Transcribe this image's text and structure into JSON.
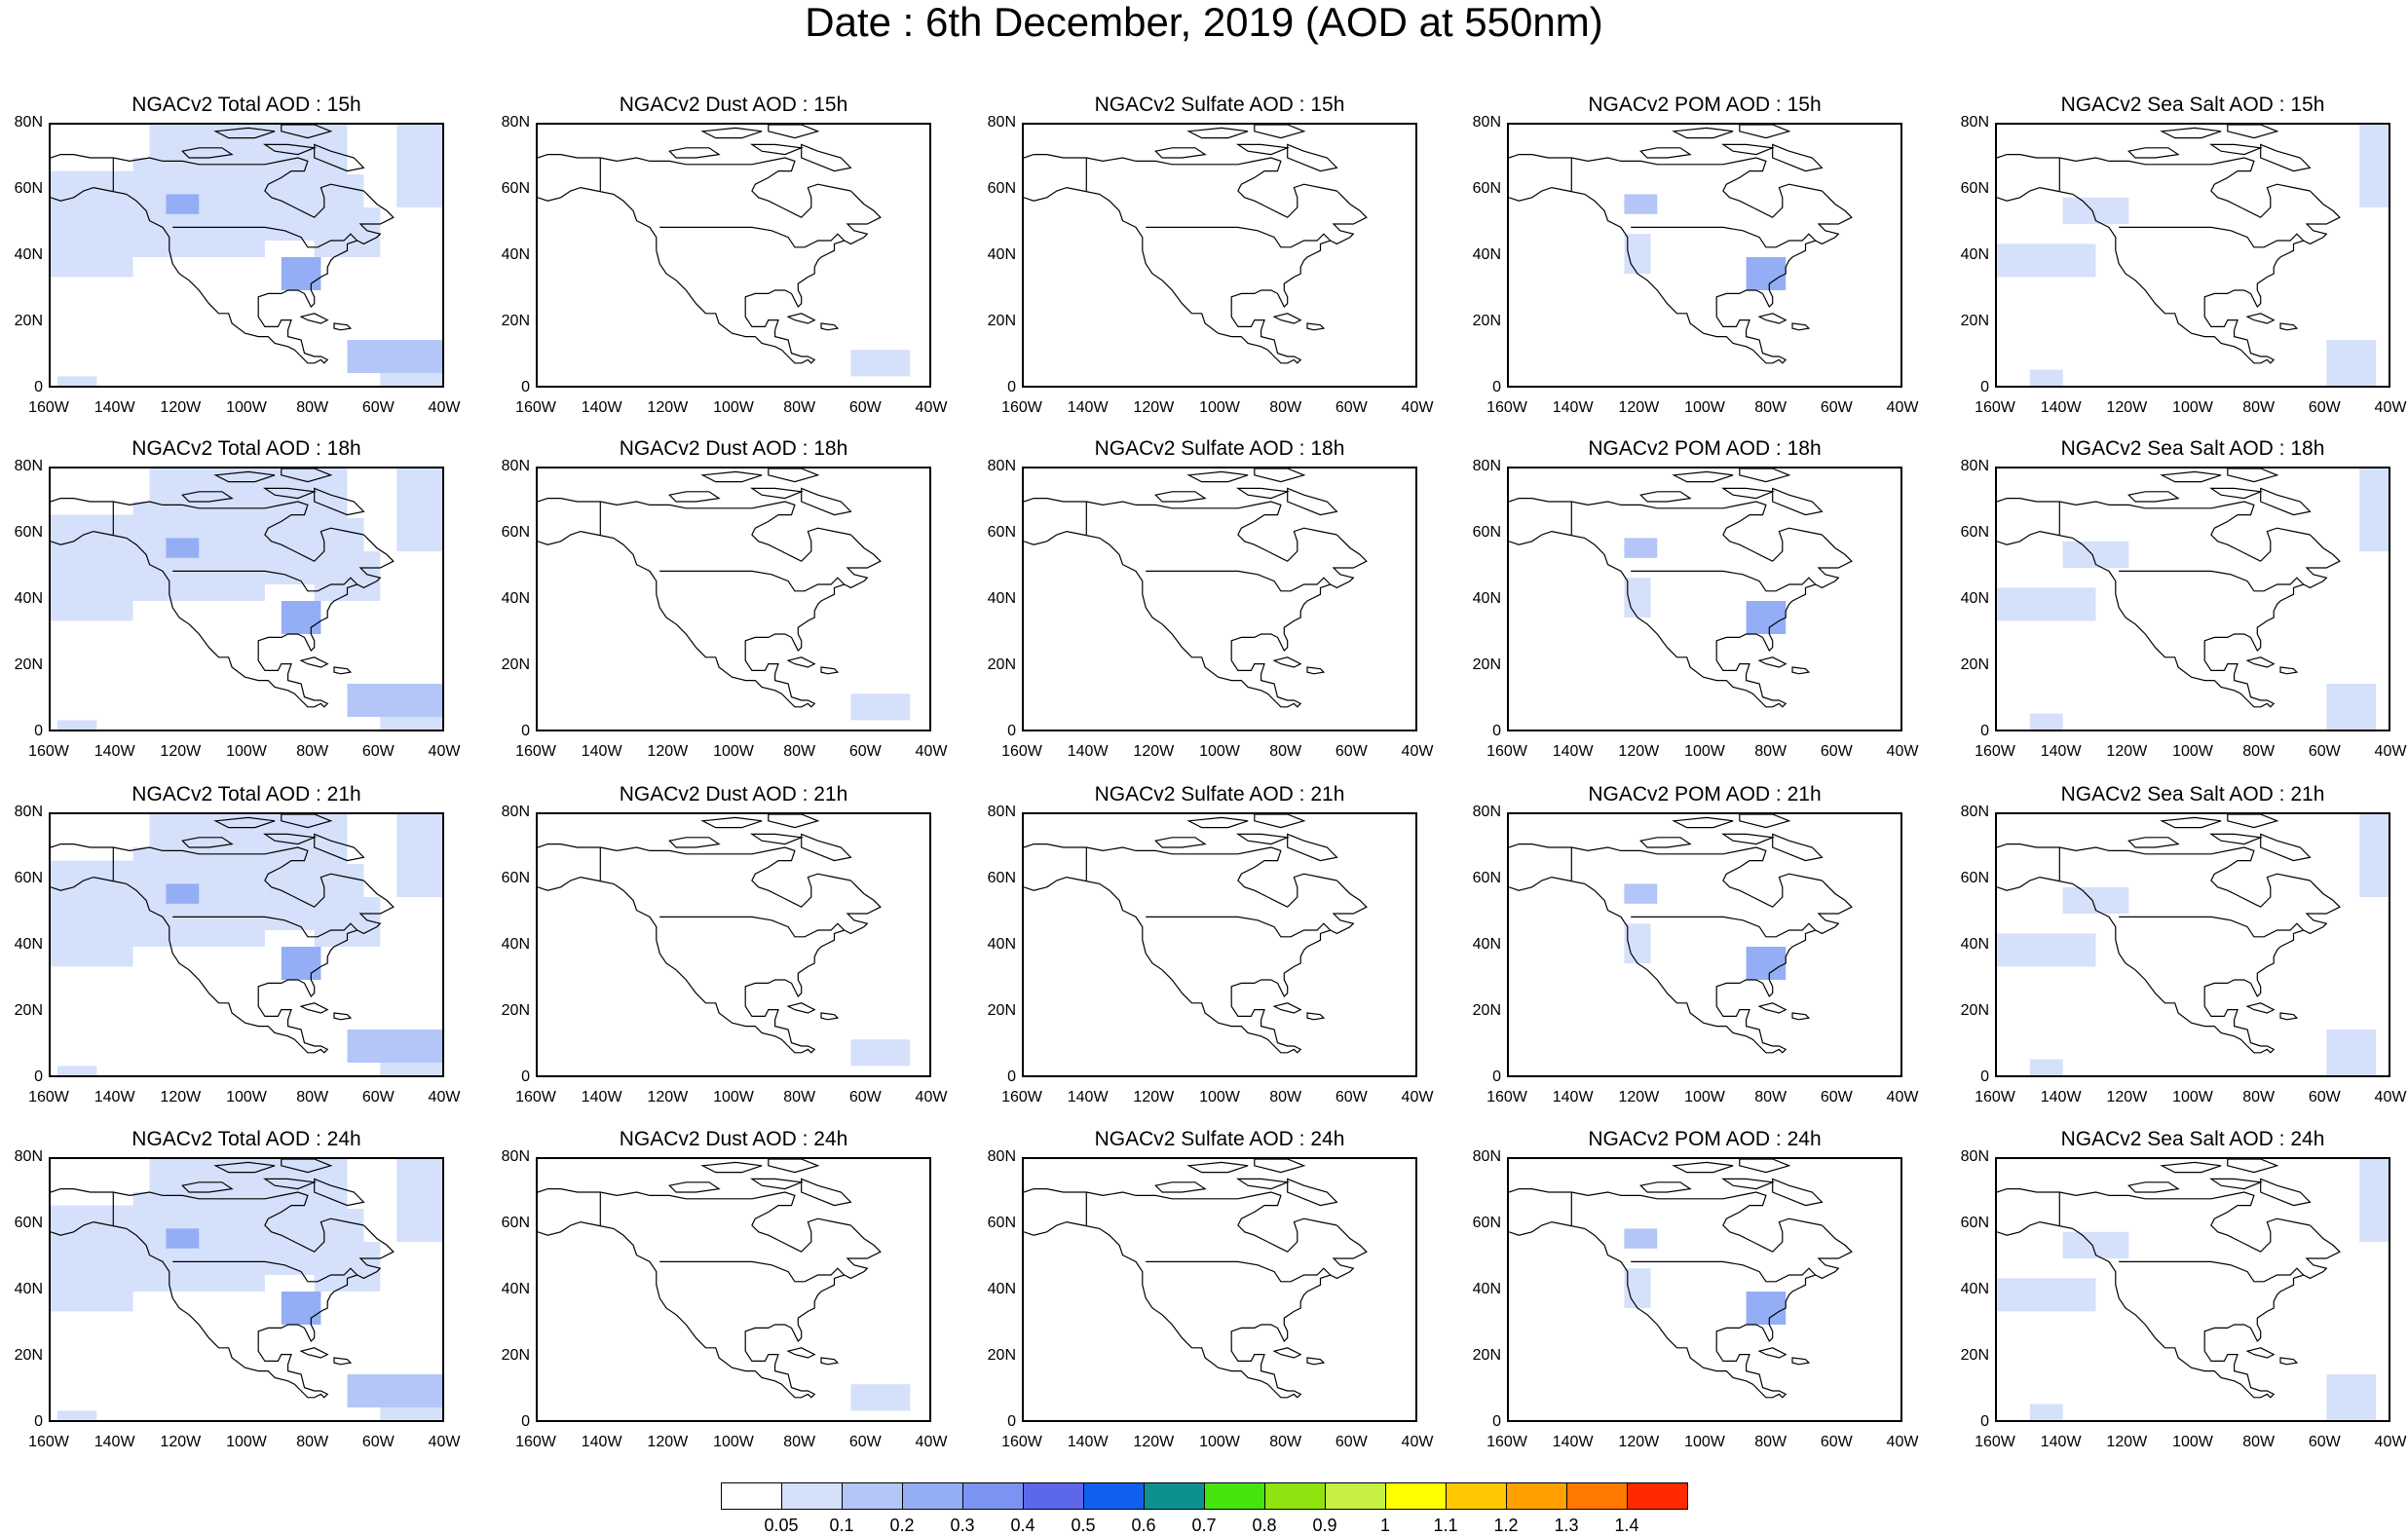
{
  "title": "Date : 6th December, 2019 (AOD at 550nm)",
  "lat_ticks": [
    "0",
    "20N",
    "40N",
    "60N",
    "80N"
  ],
  "lon_ticks": [
    "160W",
    "140W",
    "120W",
    "100W",
    "80W",
    "60W",
    "40W"
  ],
  "panels": [
    [
      "NGACv2 Total AOD : 15h",
      "NGACv2 Dust AOD : 15h",
      "NGACv2 Sulfate AOD : 15h",
      "NGACv2 POM AOD : 15h",
      "NGACv2 Sea Salt AOD : 15h"
    ],
    [
      "NGACv2 Total AOD : 18h",
      "NGACv2 Dust AOD : 18h",
      "NGACv2 Sulfate AOD : 18h",
      "NGACv2 POM AOD : 18h",
      "NGACv2 Sea Salt AOD : 18h"
    ],
    [
      "NGACv2 Total AOD : 21h",
      "NGACv2 Dust AOD : 21h",
      "NGACv2 Sulfate AOD : 21h",
      "NGACv2 POM AOD : 21h",
      "NGACv2 Sea Salt AOD : 21h"
    ],
    [
      "NGACv2 Total AOD : 24h",
      "NGACv2 Dust AOD : 24h",
      "NGACv2 Sulfate AOD : 24h",
      "NGACv2 POM AOD : 24h",
      "NGACv2 Sea Salt  AOD : 24h"
    ]
  ],
  "colorbar": {
    "labels": [
      "0.05",
      "0.1",
      "0.2",
      "0.3",
      "0.4",
      "0.5",
      "0.6",
      "0.7",
      "0.8",
      "0.9",
      "1",
      "1.1",
      "1.2",
      "1.3",
      "1.4"
    ],
    "colors": [
      "#ffffff",
      "#d5e0fb",
      "#b3c6f7",
      "#94aef5",
      "#7b93f2",
      "#5c67ea",
      "#1060f0",
      "#0e9090",
      "#47e30f",
      "#8fe30e",
      "#c6f043",
      "#ffff00",
      "#ffc800",
      "#ffa000",
      "#ff7800",
      "#ff2a00"
    ]
  }
}
